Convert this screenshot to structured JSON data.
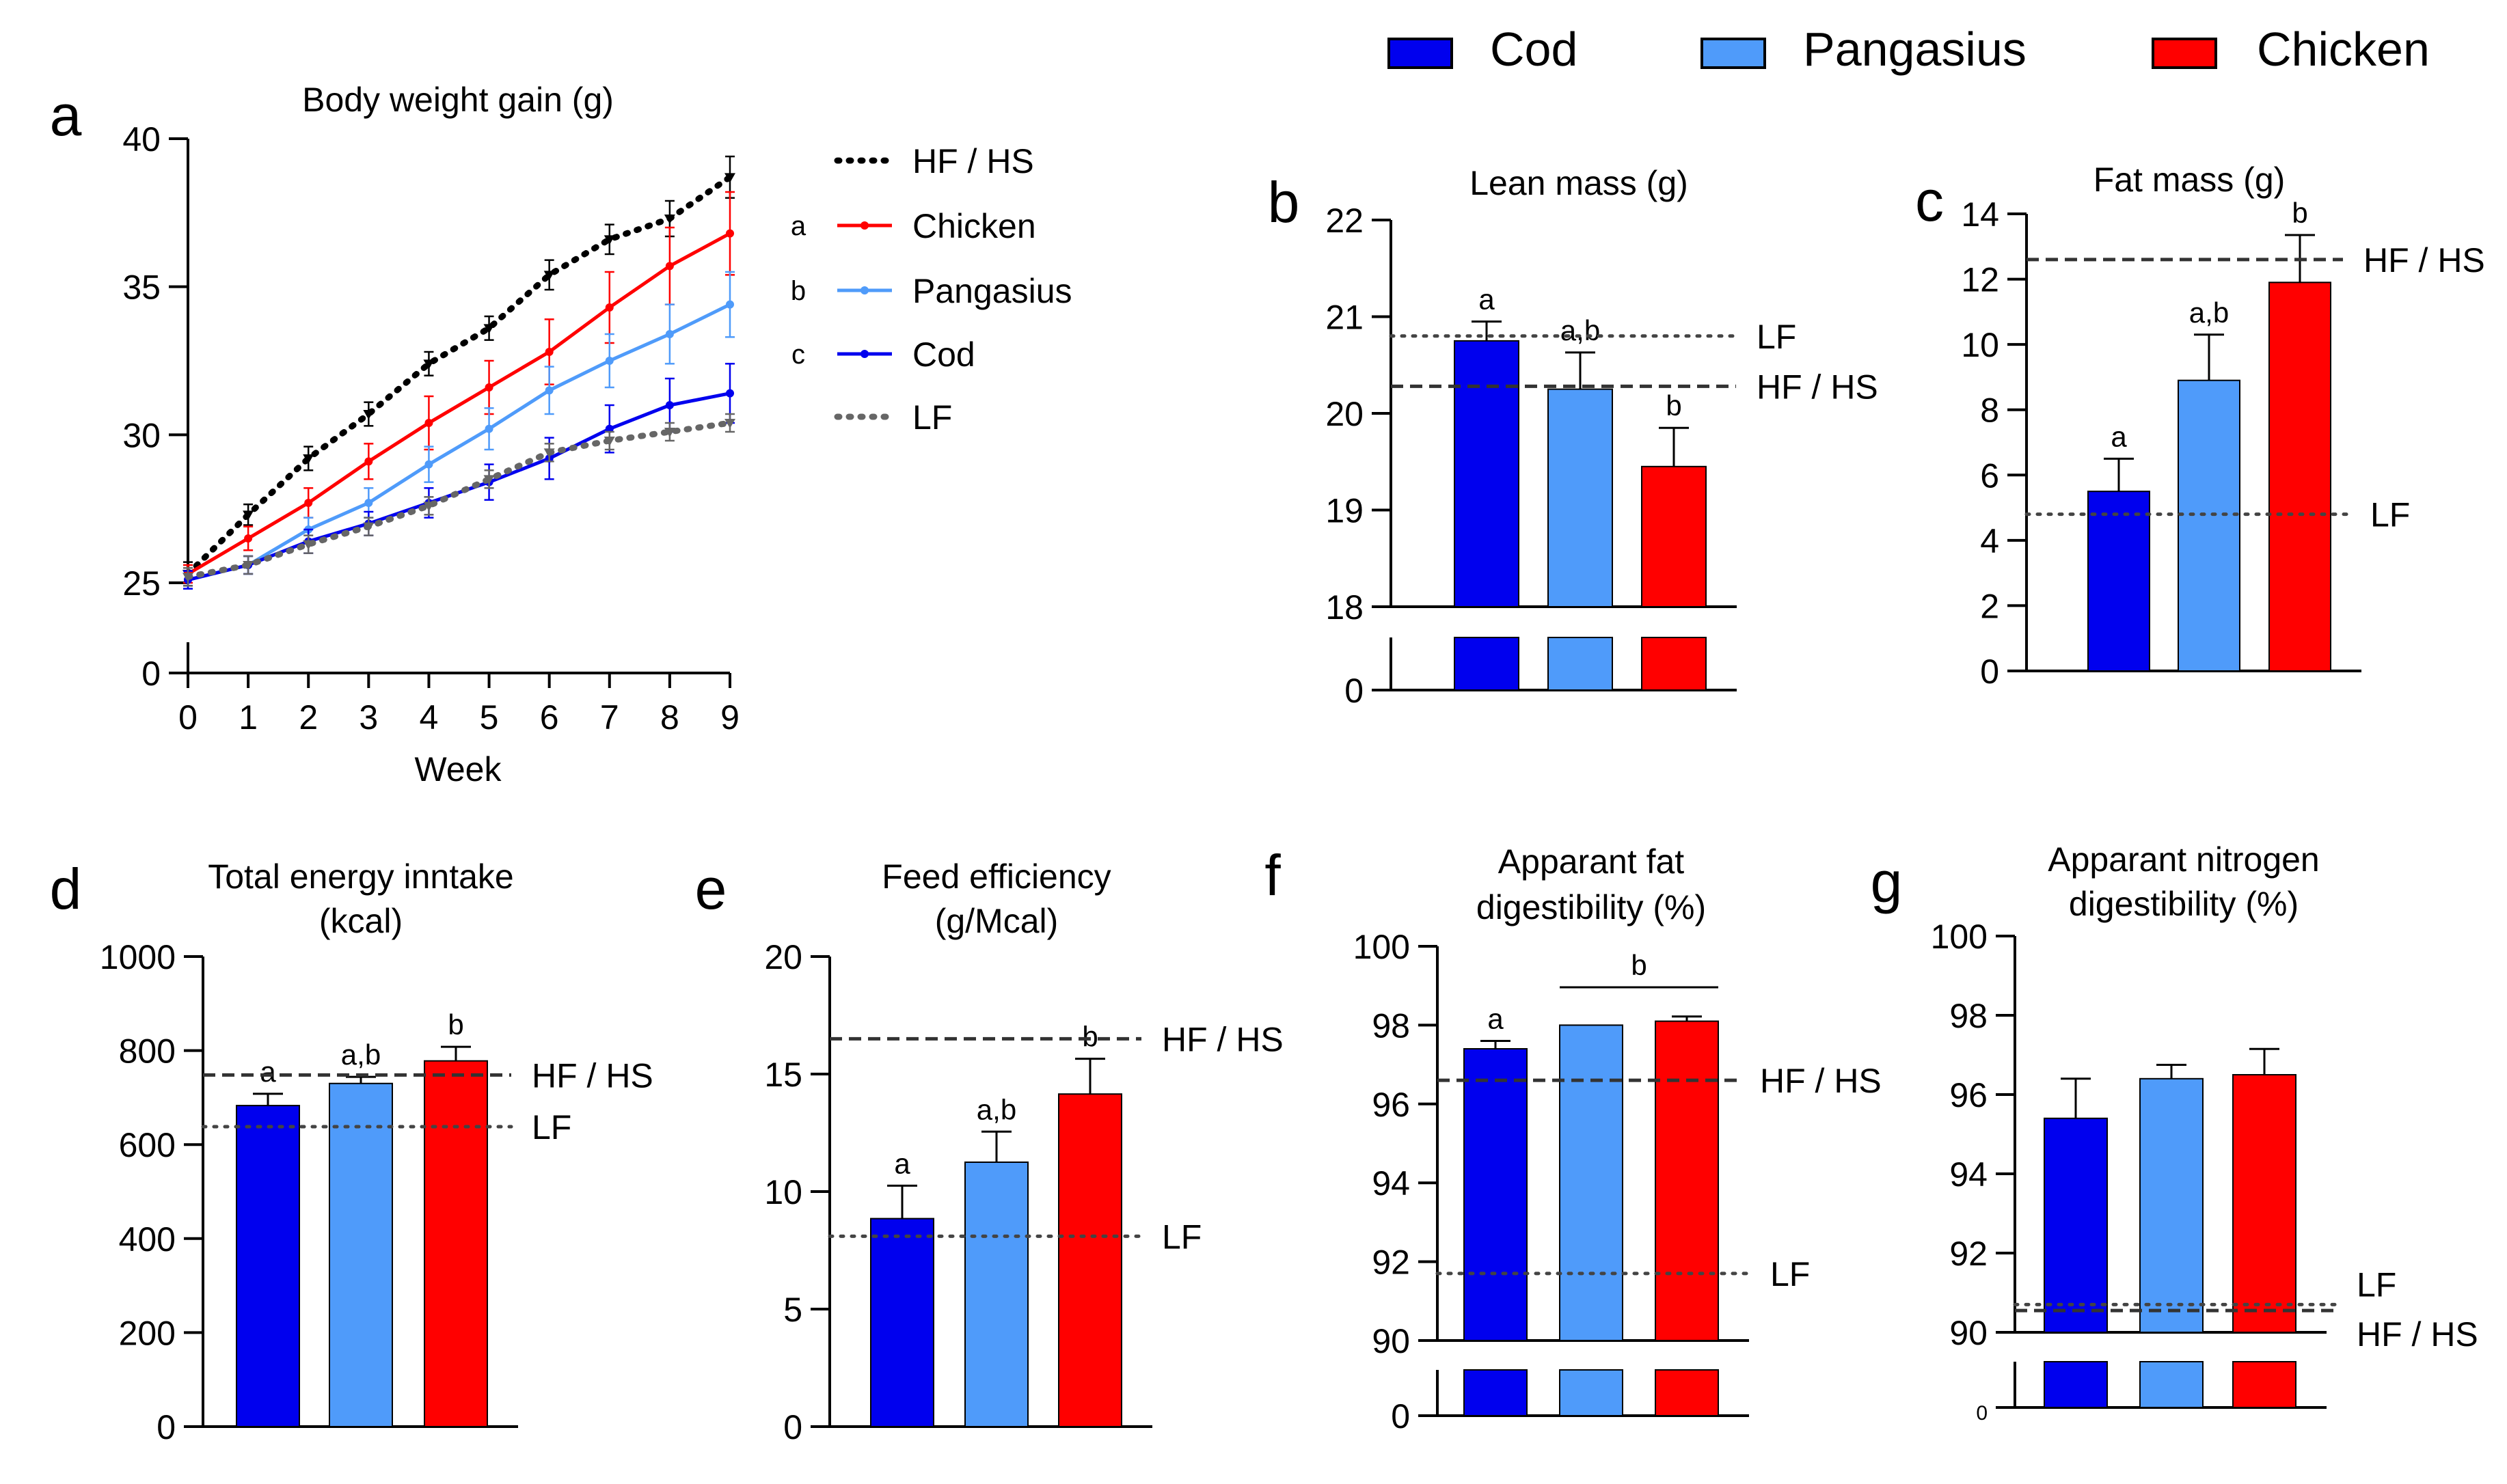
{
  "colors": {
    "cod": "#0000ee",
    "pangasius": "#4f9bfa",
    "chicken": "#ff0000",
    "hfhs": "#000000",
    "lf": "#666666"
  },
  "legend": {
    "cod": "Cod",
    "pangasius": "Pangasius",
    "chicken": "Chicken"
  },
  "chart_data": [
    {
      "panel": "a",
      "type": "line",
      "title": "Body weight gain (g)",
      "xlabel": "Week",
      "ylabel": "",
      "x": [
        0,
        1,
        2,
        3,
        4,
        5,
        6,
        7,
        8,
        9
      ],
      "xlim": [
        0,
        9
      ],
      "ylim": [
        25,
        40
      ],
      "ybreak": "0",
      "yticks": [
        "25",
        "30",
        "35",
        "40"
      ],
      "xticks": [
        "0",
        "1",
        "2",
        "3",
        "4",
        "5",
        "6",
        "7",
        "8",
        "9"
      ],
      "series": [
        {
          "name": "HF / HS",
          "key": "hfhs",
          "style": "dotted",
          "letter": "",
          "values": [
            25.3,
            27.3,
            29.2,
            30.7,
            32.4,
            33.6,
            35.4,
            36.6,
            37.3,
            38.7
          ],
          "err": [
            0.4,
            0.35,
            0.4,
            0.4,
            0.4,
            0.4,
            0.5,
            0.5,
            0.6,
            0.7
          ]
        },
        {
          "name": "Chicken",
          "key": "chicken",
          "style": "solid",
          "letter": "a",
          "values": [
            25.3,
            26.5,
            27.7,
            29.1,
            30.4,
            31.6,
            32.8,
            34.3,
            35.7,
            36.8
          ],
          "err": [
            0.3,
            0.4,
            0.5,
            0.6,
            0.9,
            0.9,
            1.1,
            1.2,
            1.3,
            1.4
          ]
        },
        {
          "name": "Pangasius",
          "key": "pangasius",
          "style": "solid",
          "letter": "b",
          "values": [
            25.1,
            25.6,
            26.8,
            27.7,
            29.0,
            30.2,
            31.5,
            32.5,
            33.4,
            34.4
          ],
          "err": [
            0.3,
            0.3,
            0.4,
            0.5,
            0.6,
            0.7,
            0.8,
            0.9,
            1.0,
            1.1
          ]
        },
        {
          "name": "Cod",
          "key": "cod",
          "style": "solid",
          "letter": "c",
          "values": [
            25.1,
            25.6,
            26.4,
            27.0,
            27.7,
            28.4,
            29.2,
            30.2,
            31.0,
            31.4
          ],
          "err": [
            0.3,
            0.3,
            0.4,
            0.4,
            0.5,
            0.6,
            0.7,
            0.8,
            0.9,
            1.0
          ]
        },
        {
          "name": "LF",
          "key": "lf",
          "style": "dotted",
          "letter": "",
          "values": [
            25.2,
            25.6,
            26.3,
            26.9,
            27.6,
            28.5,
            29.4,
            29.8,
            30.1,
            30.4
          ],
          "err": [
            0.3,
            0.3,
            0.3,
            0.3,
            0.3,
            0.3,
            0.3,
            0.3,
            0.3,
            0.3
          ]
        }
      ]
    },
    {
      "panel": "b",
      "type": "bar",
      "title": "Lean mass (g)",
      "categories": [
        "Cod",
        "Pangasius",
        "Chicken"
      ],
      "values": [
        20.75,
        20.25,
        19.45
      ],
      "err": [
        0.2,
        0.38,
        0.4
      ],
      "letters": [
        "a",
        "a,b",
        "b"
      ],
      "ylim": [
        18,
        22
      ],
      "yticks": [
        "18",
        "19",
        "20",
        "21",
        "22"
      ],
      "ybreak": "0",
      "refs": [
        {
          "label": "LF",
          "value": 20.8,
          "style": "dotted"
        },
        {
          "label": "HF / HS",
          "value": 20.28,
          "style": "dashed"
        }
      ]
    },
    {
      "panel": "c",
      "type": "bar",
      "title": "Fat mass (g)",
      "categories": [
        "Cod",
        "Pangasius",
        "Chicken"
      ],
      "values": [
        5.5,
        8.9,
        11.9
      ],
      "err": [
        1.0,
        1.4,
        1.45
      ],
      "letters": [
        "a",
        "a,b",
        "b"
      ],
      "ylim": [
        0,
        14
      ],
      "yticks": [
        "0",
        "2",
        "4",
        "6",
        "8",
        "10",
        "12",
        "14"
      ],
      "ybreak": "",
      "refs": [
        {
          "label": "HF / HS",
          "value": 12.6,
          "style": "dashed"
        },
        {
          "label": "LF",
          "value": 4.8,
          "style": "dotted"
        }
      ]
    },
    {
      "panel": "d",
      "type": "bar",
      "title": [
        "Total energy inntake",
        "(kcal)"
      ],
      "categories": [
        "Cod",
        "Pangasius",
        "Chicken"
      ],
      "values": [
        683,
        730,
        778
      ],
      "err": [
        25,
        14,
        30
      ],
      "letters": [
        "a",
        "a,b",
        "b"
      ],
      "ylim": [
        0,
        1000
      ],
      "yticks": [
        "0",
        "200",
        "400",
        "600",
        "800",
        "1000"
      ],
      "ybreak": "",
      "refs": [
        {
          "label": "HF / HS",
          "value": 748,
          "style": "dashed"
        },
        {
          "label": "LF",
          "value": 638,
          "style": "dotted"
        }
      ]
    },
    {
      "panel": "e",
      "type": "bar",
      "title": [
        "Feed efficiency",
        "(g/Mcal)"
      ],
      "categories": [
        "Cod",
        "Pangasius",
        "Chicken"
      ],
      "values": [
        8.85,
        11.25,
        14.15
      ],
      "err": [
        1.4,
        1.3,
        1.5
      ],
      "letters": [
        "a",
        "a,b",
        "b"
      ],
      "ylim": [
        0,
        20
      ],
      "yticks": [
        "0",
        "5",
        "10",
        "15",
        "20"
      ],
      "ybreak": "",
      "refs": [
        {
          "label": "HF / HS",
          "value": 16.5,
          "style": "dashed"
        },
        {
          "label": "LF",
          "value": 8.1,
          "style": "dotted"
        }
      ]
    },
    {
      "panel": "f",
      "type": "bar",
      "title": [
        "Apparant fat",
        "digestibility (%)"
      ],
      "categories": [
        "Cod",
        "Pangasius",
        "Chicken"
      ],
      "values": [
        97.4,
        98.0,
        98.1
      ],
      "err": [
        0.2,
        0.0,
        0.12
      ],
      "letters": [
        "a",
        "",
        ""
      ],
      "bracket": {
        "label": "b",
        "from": 1,
        "to": 2
      },
      "ylim": [
        90,
        100
      ],
      "yticks": [
        "90",
        "92",
        "94",
        "96",
        "98",
        "100"
      ],
      "ybreak": "0",
      "refs": [
        {
          "label": "HF / HS",
          "value": 96.6,
          "style": "dashed"
        },
        {
          "label": "LF",
          "value": 91.7,
          "style": "dotted"
        }
      ]
    },
    {
      "panel": "g",
      "type": "bar",
      "title": [
        "Apparant nitrogen",
        "digestibility (%)"
      ],
      "categories": [
        "Cod",
        "Pangasius",
        "Chicken"
      ],
      "values": [
        95.4,
        96.4,
        96.5
      ],
      "err": [
        1.0,
        0.35,
        0.65
      ],
      "letters": [
        "",
        "",
        ""
      ],
      "ylim": [
        90,
        100
      ],
      "yticks": [
        "90",
        "92",
        "94",
        "96",
        "98",
        "100"
      ],
      "ybreak": "0",
      "refs": [
        {
          "label": "LF",
          "value": 90.7,
          "style": "dotted"
        },
        {
          "label": "HF / HS",
          "value": 90.55,
          "style": "dashed"
        }
      ]
    }
  ]
}
